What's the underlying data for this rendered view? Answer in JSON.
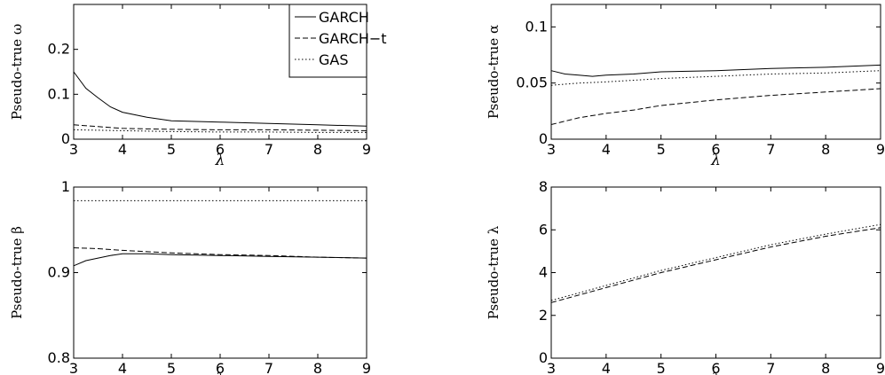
{
  "chart_data": [
    {
      "type": "line",
      "ylabel": "Pseudo-true ω",
      "xlabel": "λ",
      "xlim": [
        3,
        9
      ],
      "ylim": [
        0,
        0.3
      ],
      "xticks": [
        "3",
        "4",
        "5",
        "6",
        "7",
        "8",
        "9"
      ],
      "yticks": [
        {
          "v": 0,
          "t": "0"
        },
        {
          "v": 0.1,
          "t": "0.1"
        },
        {
          "v": 0.2,
          "t": "0.2"
        }
      ],
      "legend": {
        "placement": "top-right"
      },
      "series": [
        {
          "name": "GARCH",
          "style": "solid",
          "x": [
            3,
            3.25,
            3.5,
            3.75,
            4,
            4.5,
            5,
            6,
            7,
            8,
            9
          ],
          "y": [
            0.15,
            0.113,
            0.092,
            0.072,
            0.06,
            0.049,
            0.041,
            0.038,
            0.035,
            0.032,
            0.029
          ]
        },
        {
          "name": "GARCH−t",
          "style": "dashed",
          "x": [
            3,
            3.5,
            4,
            5,
            6,
            7,
            8,
            9
          ],
          "y": [
            0.032,
            0.028,
            0.024,
            0.022,
            0.021,
            0.021,
            0.02,
            0.019
          ]
        },
        {
          "name": "GAS",
          "style": "dotted",
          "x": [
            3,
            4,
            5,
            6,
            7,
            8,
            9
          ],
          "y": [
            0.021,
            0.019,
            0.017,
            0.016,
            0.016,
            0.015,
            0.015
          ]
        }
      ]
    },
    {
      "type": "line",
      "ylabel": "Pseudo-true α",
      "xlabel": "λ",
      "xlim": [
        3,
        9
      ],
      "ylim": [
        0,
        0.12
      ],
      "xticks": [
        "3",
        "4",
        "5",
        "6",
        "7",
        "8",
        "9"
      ],
      "yticks": [
        {
          "v": 0,
          "t": "0"
        },
        {
          "v": 0.05,
          "t": "0.05"
        },
        {
          "v": 0.1,
          "t": "0.1"
        }
      ],
      "series": [
        {
          "name": "GARCH",
          "style": "solid",
          "x": [
            3,
            3.25,
            3.5,
            3.75,
            4,
            4.5,
            5,
            6,
            7,
            8,
            9
          ],
          "y": [
            0.061,
            0.058,
            0.057,
            0.056,
            0.057,
            0.058,
            0.06,
            0.061,
            0.063,
            0.064,
            0.066
          ]
        },
        {
          "name": "GARCH−t",
          "style": "dashed",
          "x": [
            3,
            3.5,
            4,
            4.5,
            5,
            6,
            7,
            8,
            9
          ],
          "y": [
            0.013,
            0.019,
            0.023,
            0.026,
            0.03,
            0.035,
            0.039,
            0.042,
            0.045
          ]
        },
        {
          "name": "GAS",
          "style": "dotted",
          "x": [
            3,
            3.5,
            4,
            5,
            6,
            7,
            8,
            9
          ],
          "y": [
            0.048,
            0.05,
            0.051,
            0.054,
            0.056,
            0.058,
            0.059,
            0.061
          ]
        }
      ]
    },
    {
      "type": "line",
      "ylabel": "Pseudo-true β",
      "xlabel": "λ",
      "xlim": [
        3,
        9
      ],
      "ylim": [
        0.8,
        1.0
      ],
      "xticks": [
        "3",
        "4",
        "5",
        "6",
        "7",
        "8",
        "9"
      ],
      "yticks": [
        {
          "v": 0.8,
          "t": "0.8"
        },
        {
          "v": 0.9,
          "t": "0.9"
        },
        {
          "v": 1.0,
          "t": "1"
        }
      ],
      "series": [
        {
          "name": "GARCH",
          "style": "solid",
          "x": [
            3,
            3.25,
            3.5,
            3.75,
            4,
            4.5,
            5,
            6,
            7,
            8,
            9
          ],
          "y": [
            0.908,
            0.914,
            0.917,
            0.92,
            0.922,
            0.922,
            0.921,
            0.92,
            0.919,
            0.918,
            0.917
          ]
        },
        {
          "name": "GARCH−t",
          "style": "dashed",
          "x": [
            3,
            3.5,
            4,
            5,
            6,
            7,
            8,
            9
          ],
          "y": [
            0.929,
            0.928,
            0.926,
            0.923,
            0.921,
            0.92,
            0.918,
            0.917
          ]
        },
        {
          "name": "GAS",
          "style": "dotted",
          "x": [
            3,
            4,
            5,
            6,
            7,
            8,
            9
          ],
          "y": [
            0.984,
            0.984,
            0.984,
            0.984,
            0.984,
            0.984,
            0.984
          ]
        }
      ]
    },
    {
      "type": "line",
      "ylabel": "Pseudo-true λ",
      "xlabel": "λ",
      "xlim": [
        3,
        9
      ],
      "ylim": [
        0,
        8
      ],
      "xticks": [
        "3",
        "4",
        "5",
        "6",
        "7",
        "8",
        "9"
      ],
      "yticks": [
        {
          "v": 0,
          "t": "0"
        },
        {
          "v": 2,
          "t": "2"
        },
        {
          "v": 4,
          "t": "4"
        },
        {
          "v": 6,
          "t": "6"
        },
        {
          "v": 8,
          "t": "8"
        }
      ],
      "series": [
        {
          "name": "GARCH−t",
          "style": "dashed",
          "x": [
            3,
            4,
            5,
            6,
            7,
            8,
            9
          ],
          "y": [
            2.6,
            3.3,
            4.0,
            4.6,
            5.2,
            5.7,
            6.1
          ]
        },
        {
          "name": "GAS",
          "style": "dotted",
          "x": [
            3,
            4,
            5,
            6,
            7,
            8,
            9
          ],
          "y": [
            2.7,
            3.4,
            4.1,
            4.7,
            5.3,
            5.8,
            6.25
          ]
        }
      ]
    }
  ]
}
